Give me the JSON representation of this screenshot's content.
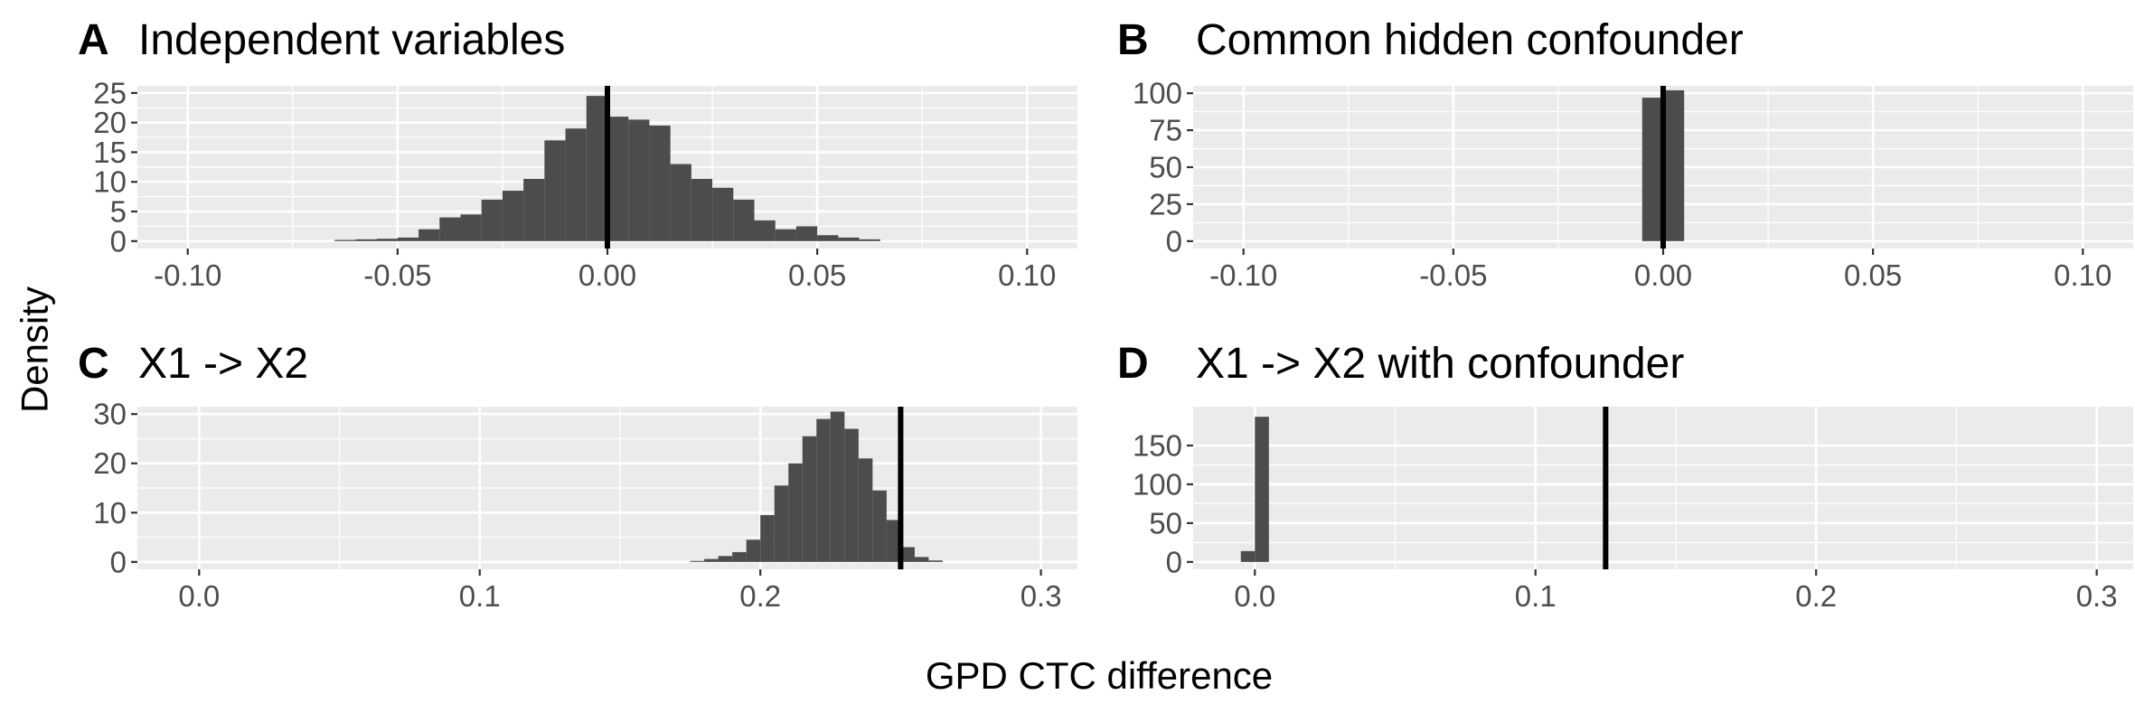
{
  "figure": {
    "shared_y_label": "Density",
    "shared_x_label": "GPD CTC difference",
    "bar_color": "#4d4b4d",
    "reference_line_color": "#000000",
    "panel_background": "#ebebeb",
    "grid_color": "#ffffff"
  },
  "chart_data": [
    {
      "id": "A",
      "tag": "A",
      "title": "Independent variables",
      "type": "bar",
      "subtype": "histogram",
      "xlabel": "",
      "ylabel": "",
      "xlim": [
        -0.112,
        0.112
      ],
      "ylim": [
        -1.25,
        26.2
      ],
      "xticks": [
        -0.1,
        -0.05,
        0.0,
        0.05,
        0.1
      ],
      "xtick_labels": [
        "-0.10",
        "-0.05",
        "0.00",
        "0.05",
        "0.10"
      ],
      "yticks": [
        0,
        5,
        10,
        15,
        20,
        25
      ],
      "ytick_labels": [
        "0",
        "5",
        "10",
        "15",
        "20",
        "25"
      ],
      "bin_width": 0.005,
      "bins_left": [
        -0.065,
        -0.06,
        -0.055,
        -0.05,
        -0.045,
        -0.04,
        -0.035,
        -0.03,
        -0.025,
        -0.02,
        -0.015,
        -0.01,
        -0.005,
        0.0,
        0.005,
        0.01,
        0.015,
        0.02,
        0.025,
        0.03,
        0.035,
        0.04,
        0.045,
        0.05,
        0.055,
        0.06
      ],
      "values": [
        0.2,
        0.3,
        0.4,
        0.6,
        2.0,
        4.0,
        4.5,
        7.0,
        8.5,
        10.5,
        17.0,
        19.0,
        24.5,
        21.0,
        20.5,
        19.5,
        13.0,
        10.5,
        9.0,
        7.0,
        3.5,
        2.0,
        2.5,
        1.0,
        0.6,
        0.3
      ],
      "reference_line": 0.0,
      "grid": true
    },
    {
      "id": "B",
      "tag": "B",
      "title": "Common hidden confounder",
      "type": "bar",
      "subtype": "histogram",
      "xlabel": "",
      "ylabel": "",
      "xlim": [
        -0.112,
        0.112
      ],
      "ylim": [
        -5,
        105
      ],
      "xticks": [
        -0.1,
        -0.05,
        0.0,
        0.05,
        0.1
      ],
      "xtick_labels": [
        "-0.10",
        "-0.05",
        "0.00",
        "0.05",
        "0.10"
      ],
      "yticks": [
        0,
        25,
        50,
        75,
        100
      ],
      "ytick_labels": [
        "0",
        "25",
        "50",
        "75",
        "100"
      ],
      "bin_width": 0.005,
      "bins_left": [
        -0.005,
        0.0
      ],
      "values": [
        97,
        102
      ],
      "reference_line": 0.0,
      "grid": true
    },
    {
      "id": "C",
      "tag": "C",
      "title": "X1 -> X2",
      "type": "bar",
      "subtype": "histogram",
      "xlabel": "",
      "ylabel": "",
      "xlim": [
        -0.022,
        0.313
      ],
      "ylim": [
        -1.5,
        31.5
      ],
      "xticks": [
        0.0,
        0.1,
        0.2,
        0.3
      ],
      "xtick_labels": [
        "0.0",
        "0.1",
        "0.2",
        "0.3"
      ],
      "yticks": [
        0,
        10,
        20,
        30
      ],
      "ytick_labels": [
        "0",
        "10",
        "20",
        "30"
      ],
      "bin_width": 0.005,
      "bins_left": [
        0.175,
        0.18,
        0.185,
        0.19,
        0.195,
        0.2,
        0.205,
        0.21,
        0.215,
        0.22,
        0.225,
        0.23,
        0.235,
        0.24,
        0.245,
        0.25,
        0.255,
        0.26
      ],
      "values": [
        0.2,
        0.6,
        1.2,
        2.0,
        4.5,
        9.5,
        15.5,
        20.0,
        25.5,
        29.0,
        30.5,
        27.0,
        21.0,
        14.5,
        8.5,
        3.0,
        1.0,
        0.3
      ],
      "reference_line": 0.25,
      "grid": true
    },
    {
      "id": "D",
      "tag": "D",
      "title": "X1 -> X2 with confounder",
      "type": "bar",
      "subtype": "histogram",
      "xlabel": "",
      "ylabel": "",
      "xlim": [
        -0.022,
        0.313
      ],
      "ylim": [
        -9.5,
        200
      ],
      "xticks": [
        0.0,
        0.1,
        0.2,
        0.3
      ],
      "xtick_labels": [
        "0.0",
        "0.1",
        "0.2",
        "0.3"
      ],
      "yticks": [
        0,
        50,
        100,
        150
      ],
      "ytick_labels": [
        "0",
        "50",
        "100",
        "150"
      ],
      "bin_width": 0.005,
      "bins_left": [
        -0.005,
        0.0
      ],
      "values": [
        14,
        187
      ],
      "reference_line": 0.125,
      "grid": true
    }
  ]
}
